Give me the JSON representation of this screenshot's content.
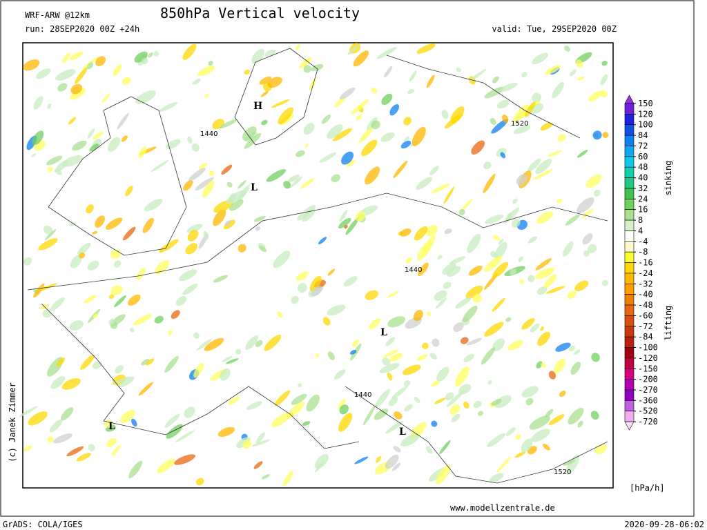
{
  "header": {
    "model": "WRF-ARW @12km",
    "title": "850hPa Vertical velocity",
    "run": "run: 28SEP2020 00Z +24h",
    "valid": "valid: Tue, 29SEP2020 00Z"
  },
  "map": {
    "labels": [
      "1440",
      "H",
      "L",
      "1520",
      "1440",
      "L",
      "1440",
      "L",
      "L",
      "1520"
    ]
  },
  "colorbar": {
    "levels": [
      150,
      120,
      100,
      84,
      72,
      60,
      48,
      40,
      32,
      24,
      16,
      8,
      4,
      -4,
      -8,
      -16,
      -24,
      -32,
      -40,
      -48,
      -60,
      -72,
      -84,
      -100,
      -120,
      -150,
      -200,
      -270,
      -360,
      -520,
      -720
    ],
    "colors": [
      "#9a30e0",
      "#7020d8",
      "#2020e0",
      "#1050e8",
      "#1080f0",
      "#10a8f0",
      "#10c8e8",
      "#10d0b0",
      "#20c880",
      "#40c050",
      "#70d060",
      "#a8e090",
      "#d8f0c8",
      "#ffffff",
      "#fffacc",
      "#ffff30",
      "#ffd800",
      "#ffb800",
      "#ff9c00",
      "#f08000",
      "#e86810",
      "#d85010",
      "#c83810",
      "#b82010",
      "#a00010",
      "#c00040",
      "#d80080",
      "#b000b0",
      "#9000c0",
      "#c060e0",
      "#f0b0f0",
      "#ffe0ff"
    ],
    "upper_label": "sinking",
    "lower_label": "lifting",
    "unit": "[hPa/h]"
  },
  "footer": {
    "software": "GrADS: COLA/IGES",
    "website": "www.modellzentrale.de",
    "timestamp": "2020-09-28-06:02",
    "copyright": "(c) Janek Zimmer"
  }
}
